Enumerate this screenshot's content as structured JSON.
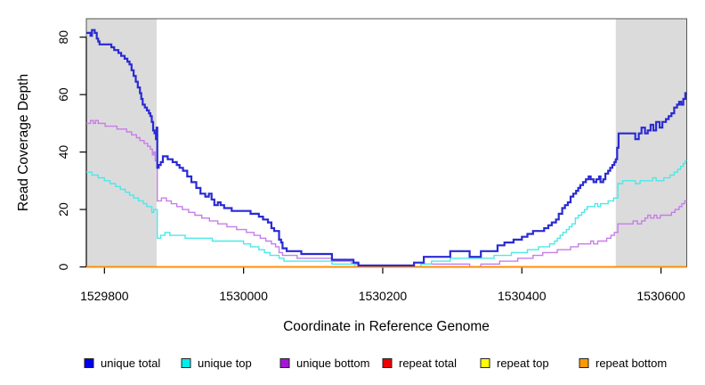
{
  "chart_data": {
    "type": "line",
    "subtype": "step-after-coverage-plot",
    "title": "",
    "xlabel": "Coordinate in Reference Genome",
    "ylabel": "Read Coverage Depth",
    "x_domain": [
      1529774,
      1530637
    ],
    "y_domain": [
      0,
      86
    ],
    "x_ticks": [
      "1529800",
      "1530000",
      "1530200",
      "1530400",
      "1530600"
    ],
    "y_ticks": [
      "0",
      "20",
      "40",
      "60",
      "80"
    ],
    "grid": false,
    "legend_position": "bottom",
    "shade_color": "#dbdbdb",
    "shaded_regions": [
      {
        "x_from": 1529774,
        "x_to": 1529875
      },
      {
        "x_from": 1530535,
        "x_to": 1530637
      }
    ],
    "series": [
      {
        "key": "unique_total",
        "name": "unique total",
        "legend_color": "#0000ee",
        "line_color": "#2a2ad4",
        "width": 2.2,
        "points": [
          [
            1529774,
            81
          ],
          [
            1529780,
            80
          ],
          [
            1529782,
            82
          ],
          [
            1529786,
            81
          ],
          [
            1529789,
            79
          ],
          [
            1529791,
            78
          ],
          [
            1529793,
            77
          ],
          [
            1529810,
            76
          ],
          [
            1529814,
            75
          ],
          [
            1529820,
            74
          ],
          [
            1529824,
            73
          ],
          [
            1529829,
            72
          ],
          [
            1529833,
            71
          ],
          [
            1529836,
            70
          ],
          [
            1529839,
            68
          ],
          [
            1529842,
            66
          ],
          [
            1529845,
            64
          ],
          [
            1529848,
            62
          ],
          [
            1529851,
            60
          ],
          [
            1529853,
            58
          ],
          [
            1529855,
            56
          ],
          [
            1529858,
            55
          ],
          [
            1529861,
            54
          ],
          [
            1529864,
            53
          ],
          [
            1529866,
            52
          ],
          [
            1529868,
            50
          ],
          [
            1529870,
            47
          ],
          [
            1529872,
            46
          ],
          [
            1529874,
            44
          ],
          [
            1529875,
            48
          ],
          [
            1529876,
            34
          ],
          [
            1529878,
            35
          ],
          [
            1529881,
            36
          ],
          [
            1529884,
            38
          ],
          [
            1529891,
            37
          ],
          [
            1529898,
            36
          ],
          [
            1529904,
            35
          ],
          [
            1529908,
            34
          ],
          [
            1529913,
            33
          ],
          [
            1529919,
            31
          ],
          [
            1529925,
            29
          ],
          [
            1529932,
            27
          ],
          [
            1529938,
            25
          ],
          [
            1529945,
            24
          ],
          [
            1529950,
            25
          ],
          [
            1529954,
            23
          ],
          [
            1529958,
            21
          ],
          [
            1529963,
            22
          ],
          [
            1529967,
            21
          ],
          [
            1529972,
            20
          ],
          [
            1529983,
            19
          ],
          [
            1530010,
            18
          ],
          [
            1530022,
            17
          ],
          [
            1530028,
            16
          ],
          [
            1530035,
            15
          ],
          [
            1530040,
            13
          ],
          [
            1530044,
            12
          ],
          [
            1530051,
            9
          ],
          [
            1530054,
            8
          ],
          [
            1530056,
            6
          ],
          [
            1530062,
            5
          ],
          [
            1530083,
            4
          ],
          [
            1530127,
            2
          ],
          [
            1530158,
            1
          ],
          [
            1530165,
            0
          ],
          [
            1530245,
            1
          ],
          [
            1530259,
            3
          ],
          [
            1530297,
            5
          ],
          [
            1530325,
            3
          ],
          [
            1530341,
            5
          ],
          [
            1530365,
            7
          ],
          [
            1530375,
            8
          ],
          [
            1530388,
            9
          ],
          [
            1530400,
            10
          ],
          [
            1530408,
            11
          ],
          [
            1530416,
            12
          ],
          [
            1530432,
            13
          ],
          [
            1530438,
            14
          ],
          [
            1530443,
            15
          ],
          [
            1530449,
            16
          ],
          [
            1530453,
            18
          ],
          [
            1530458,
            20
          ],
          [
            1530462,
            21
          ],
          [
            1530466,
            22
          ],
          [
            1530470,
            24
          ],
          [
            1530474,
            25
          ],
          [
            1530478,
            26
          ],
          [
            1530481,
            27
          ],
          [
            1530484,
            28
          ],
          [
            1530488,
            29
          ],
          [
            1530492,
            30
          ],
          [
            1530496,
            31
          ],
          [
            1530499,
            30
          ],
          [
            1530503,
            29
          ],
          [
            1530507,
            30
          ],
          [
            1530511,
            31
          ],
          [
            1530513,
            29
          ],
          [
            1530517,
            30
          ],
          [
            1530520,
            32
          ],
          [
            1530524,
            33
          ],
          [
            1530527,
            34
          ],
          [
            1530530,
            35
          ],
          [
            1530533,
            36
          ],
          [
            1530535,
            37
          ],
          [
            1530537,
            41
          ],
          [
            1530539,
            46
          ],
          [
            1530558,
            46
          ],
          [
            1530563,
            44
          ],
          [
            1530568,
            46
          ],
          [
            1530572,
            48
          ],
          [
            1530577,
            46
          ],
          [
            1530581,
            47
          ],
          [
            1530585,
            49
          ],
          [
            1530589,
            47
          ],
          [
            1530593,
            50
          ],
          [
            1530598,
            48
          ],
          [
            1530602,
            50
          ],
          [
            1530607,
            51
          ],
          [
            1530611,
            52
          ],
          [
            1530615,
            53
          ],
          [
            1530619,
            55
          ],
          [
            1530623,
            56
          ],
          [
            1530626,
            57
          ],
          [
            1530629,
            56
          ],
          [
            1530632,
            58
          ],
          [
            1530635,
            60
          ]
        ]
      },
      {
        "key": "unique_top",
        "name": "unique top",
        "legend_color": "#00eded",
        "line_color": "#4de8e8",
        "width": 1.4,
        "points": [
          [
            1529774,
            33
          ],
          [
            1529782,
            32
          ],
          [
            1529791,
            31
          ],
          [
            1529800,
            30
          ],
          [
            1529808,
            29
          ],
          [
            1529816,
            28
          ],
          [
            1529823,
            27
          ],
          [
            1529830,
            26
          ],
          [
            1529836,
            25
          ],
          [
            1529842,
            24
          ],
          [
            1529849,
            23
          ],
          [
            1529856,
            22
          ],
          [
            1529861,
            21
          ],
          [
            1529868,
            19
          ],
          [
            1529871,
            20
          ],
          [
            1529876,
            10
          ],
          [
            1529881,
            11
          ],
          [
            1529887,
            12
          ],
          [
            1529894,
            11
          ],
          [
            1529916,
            10
          ],
          [
            1529955,
            9
          ],
          [
            1530000,
            8
          ],
          [
            1530010,
            7
          ],
          [
            1530022,
            6
          ],
          [
            1530030,
            5
          ],
          [
            1530038,
            4
          ],
          [
            1530051,
            3
          ],
          [
            1530058,
            2
          ],
          [
            1530127,
            1
          ],
          [
            1530160,
            0
          ],
          [
            1530255,
            1
          ],
          [
            1530270,
            2
          ],
          [
            1530297,
            3
          ],
          [
            1530360,
            4
          ],
          [
            1530385,
            5
          ],
          [
            1530408,
            6
          ],
          [
            1530424,
            7
          ],
          [
            1530440,
            8
          ],
          [
            1530447,
            9
          ],
          [
            1530451,
            10
          ],
          [
            1530455,
            11
          ],
          [
            1530459,
            12
          ],
          [
            1530464,
            13
          ],
          [
            1530468,
            14
          ],
          [
            1530472,
            15
          ],
          [
            1530477,
            17
          ],
          [
            1530481,
            18
          ],
          [
            1530486,
            19
          ],
          [
            1530490,
            20
          ],
          [
            1530494,
            21
          ],
          [
            1530505,
            22
          ],
          [
            1530509,
            21
          ],
          [
            1530513,
            22
          ],
          [
            1530524,
            23
          ],
          [
            1530532,
            24
          ],
          [
            1530538,
            29
          ],
          [
            1530545,
            30
          ],
          [
            1530563,
            29
          ],
          [
            1530570,
            30
          ],
          [
            1530588,
            31
          ],
          [
            1530593,
            30
          ],
          [
            1530604,
            31
          ],
          [
            1530613,
            32
          ],
          [
            1530619,
            33
          ],
          [
            1530624,
            34
          ],
          [
            1530628,
            35
          ],
          [
            1530632,
            36
          ],
          [
            1530635,
            37
          ]
        ]
      },
      {
        "key": "unique_bottom",
        "name": "unique bottom",
        "legend_color": "#a318d6",
        "line_color": "#c77de8",
        "width": 1.4,
        "points": [
          [
            1529774,
            50
          ],
          [
            1529780,
            51
          ],
          [
            1529784,
            50
          ],
          [
            1529787,
            51
          ],
          [
            1529791,
            50
          ],
          [
            1529801,
            49
          ],
          [
            1529818,
            48
          ],
          [
            1529832,
            47
          ],
          [
            1529839,
            46
          ],
          [
            1529846,
            45
          ],
          [
            1529851,
            44
          ],
          [
            1529857,
            43
          ],
          [
            1529862,
            42
          ],
          [
            1529866,
            41
          ],
          [
            1529869,
            39
          ],
          [
            1529871,
            40
          ],
          [
            1529873,
            37
          ],
          [
            1529876,
            23
          ],
          [
            1529882,
            24
          ],
          [
            1529889,
            23
          ],
          [
            1529896,
            22
          ],
          [
            1529904,
            21
          ],
          [
            1529912,
            20
          ],
          [
            1529921,
            19
          ],
          [
            1529930,
            18
          ],
          [
            1529940,
            17
          ],
          [
            1529951,
            16
          ],
          [
            1529963,
            15
          ],
          [
            1529976,
            14
          ],
          [
            1529990,
            13
          ],
          [
            1530004,
            12
          ],
          [
            1530015,
            11
          ],
          [
            1530024,
            10
          ],
          [
            1530032,
            9
          ],
          [
            1530040,
            8
          ],
          [
            1530046,
            7
          ],
          [
            1530051,
            5
          ],
          [
            1530056,
            4
          ],
          [
            1530077,
            3
          ],
          [
            1530127,
            2
          ],
          [
            1530155,
            1
          ],
          [
            1530166,
            0
          ],
          [
            1530255,
            1
          ],
          [
            1530325,
            0
          ],
          [
            1530341,
            1
          ],
          [
            1530368,
            2
          ],
          [
            1530394,
            3
          ],
          [
            1530416,
            4
          ],
          [
            1530430,
            5
          ],
          [
            1530451,
            6
          ],
          [
            1530470,
            7
          ],
          [
            1530481,
            8
          ],
          [
            1530499,
            9
          ],
          [
            1530503,
            8
          ],
          [
            1530509,
            9
          ],
          [
            1530522,
            10
          ],
          [
            1530528,
            11
          ],
          [
            1530533,
            12
          ],
          [
            1530538,
            15
          ],
          [
            1530560,
            16
          ],
          [
            1530566,
            15
          ],
          [
            1530572,
            16
          ],
          [
            1530577,
            17
          ],
          [
            1530581,
            18
          ],
          [
            1530585,
            17
          ],
          [
            1530590,
            18
          ],
          [
            1530594,
            17
          ],
          [
            1530599,
            18
          ],
          [
            1530615,
            19
          ],
          [
            1530620,
            20
          ],
          [
            1530626,
            21
          ],
          [
            1530630,
            22
          ],
          [
            1530634,
            23
          ]
        ]
      },
      {
        "key": "repeat_total",
        "name": "repeat total",
        "legend_color": "#ee0000",
        "line_color": "#dd2222",
        "width": 1.4,
        "points": [
          [
            1529774,
            0
          ],
          [
            1530637,
            0
          ]
        ]
      },
      {
        "key": "repeat_top",
        "name": "repeat top",
        "legend_color": "#ffff00",
        "line_color": "#ffee00",
        "width": 1.4,
        "points": [
          [
            1529774,
            0
          ],
          [
            1530637,
            0
          ]
        ]
      },
      {
        "key": "repeat_bottom",
        "name": "repeat bottom",
        "legend_color": "#ff9900",
        "line_color": "#ff8c00",
        "width": 1.8,
        "points": [
          [
            1529774,
            0
          ],
          [
            1530637,
            0
          ]
        ]
      }
    ]
  }
}
